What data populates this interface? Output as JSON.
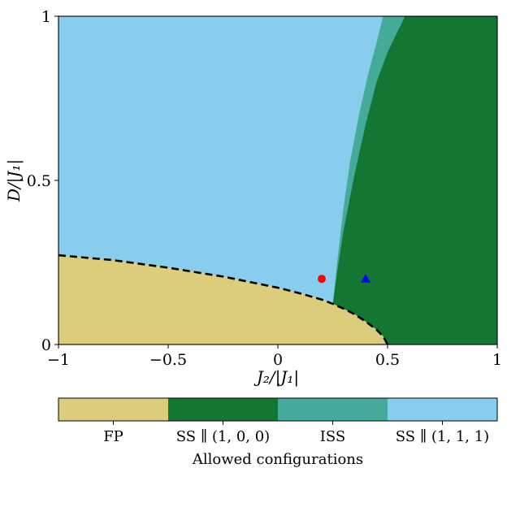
{
  "chart_data": {
    "type": "heatmap",
    "title": "",
    "xlabel": "J₂/|J₁|",
    "ylabel": "D/|J₁|",
    "xlim": [
      -1,
      1
    ],
    "ylim": [
      0,
      1
    ],
    "xticks": [
      {
        "value": -1,
        "label": "−1"
      },
      {
        "value": -0.5,
        "label": "−0.5"
      },
      {
        "value": 0,
        "label": "0"
      },
      {
        "value": 0.5,
        "label": "0.5"
      },
      {
        "value": 1,
        "label": "1"
      }
    ],
    "yticks": [
      {
        "value": 0,
        "label": "0"
      },
      {
        "value": 0.5,
        "label": "0.5"
      },
      {
        "value": 1,
        "label": "1"
      }
    ],
    "grid": false,
    "regions": [
      {
        "name": "FP",
        "color": "#dccd7d",
        "boundary": [
          [
            -1,
            0.272
          ],
          [
            -0.75,
            0.257
          ],
          [
            -0.5,
            0.234
          ],
          [
            -0.25,
            0.207
          ],
          [
            0,
            0.173
          ],
          [
            0.1,
            0.156
          ],
          [
            0.2,
            0.137
          ],
          [
            0.25,
            0.124
          ],
          [
            0.3,
            0.109
          ],
          [
            0.35,
            0.092
          ],
          [
            0.4,
            0.07
          ],
          [
            0.45,
            0.045
          ],
          [
            0.48,
            0.025
          ],
          [
            0.5,
            0
          ]
        ]
      },
      {
        "name": "SS ∥ (1, 0, 0)",
        "color": "#137633",
        "boundary": [
          [
            0.25,
            0.12
          ],
          [
            0.27,
            0.22
          ],
          [
            0.3,
            0.35
          ],
          [
            0.35,
            0.52
          ],
          [
            0.4,
            0.67
          ],
          [
            0.45,
            0.8
          ],
          [
            0.5,
            0.89
          ],
          [
            0.55,
            0.96
          ],
          [
            0.58,
            1.0
          ]
        ]
      },
      {
        "name": "ISS",
        "color": "#44aa99",
        "boundary": [
          [
            0.25,
            0.12
          ],
          [
            0.27,
            0.25
          ],
          [
            0.3,
            0.42
          ],
          [
            0.33,
            0.56
          ],
          [
            0.37,
            0.7
          ],
          [
            0.41,
            0.82
          ],
          [
            0.45,
            0.92
          ],
          [
            0.48,
            1.0
          ]
        ]
      },
      {
        "name": "SS ∥ (1, 1, 1)",
        "color": "#88ccee"
      }
    ],
    "dashed_boundary": [
      [
        -1,
        0.272
      ],
      [
        -0.75,
        0.257
      ],
      [
        -0.5,
        0.234
      ],
      [
        -0.25,
        0.207
      ],
      [
        0,
        0.173
      ],
      [
        0.1,
        0.156
      ],
      [
        0.2,
        0.137
      ],
      [
        0.25,
        0.124
      ],
      [
        0.3,
        0.109
      ],
      [
        0.35,
        0.092
      ],
      [
        0.4,
        0.07
      ],
      [
        0.45,
        0.045
      ],
      [
        0.48,
        0.025
      ],
      [
        0.5,
        0
      ]
    ],
    "markers": [
      {
        "shape": "circle",
        "x": 0.2,
        "y": 0.2,
        "color": "#ff0000"
      },
      {
        "shape": "triangle",
        "x": 0.4,
        "y": 0.2,
        "color": "#0000ff"
      }
    ],
    "colorbar": {
      "label": "Allowed configurations",
      "categories": [
        "FP",
        "SS ∥ (1, 0, 0)",
        "ISS",
        "SS ∥ (1, 1, 1)"
      ],
      "colors": [
        "#dccd7d",
        "#137633",
        "#44aa99",
        "#88ccee"
      ],
      "placement": "bottom"
    }
  }
}
